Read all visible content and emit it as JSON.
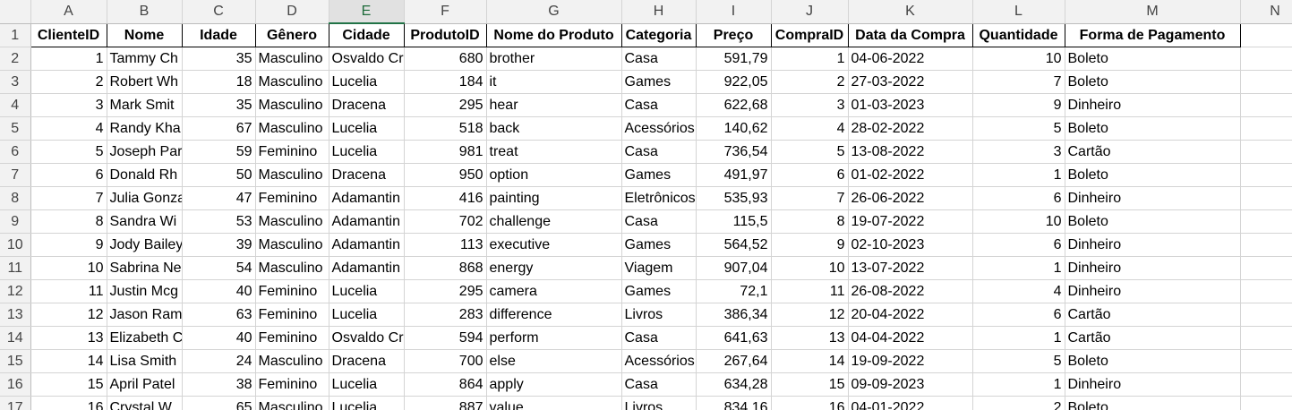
{
  "column_letters": [
    "A",
    "B",
    "C",
    "D",
    "E",
    "F",
    "G",
    "H",
    "I",
    "J",
    "K",
    "L",
    "M",
    "N"
  ],
  "selected_column": "E",
  "headers": [
    "ClienteID",
    "Nome",
    "Idade",
    "Gênero",
    "Cidade",
    "ProdutoID",
    "Nome do Produto",
    "Categoria",
    "Preço",
    "CompraID",
    "Data da Compra",
    "Quantidade",
    "Forma de Pagamento"
  ],
  "rows": [
    [
      "1",
      "Tammy Ch",
      "35",
      "Masculino",
      "Osvaldo Cr",
      "680",
      "brother",
      "Casa",
      "591,79",
      "1",
      "04-06-2022",
      "10",
      "Boleto"
    ],
    [
      "2",
      "Robert Wh",
      "18",
      "Masculino",
      "Lucelia",
      "184",
      "it",
      "Games",
      "922,05",
      "2",
      "27-03-2022",
      "7",
      "Boleto"
    ],
    [
      "3",
      "Mark Smit",
      "35",
      "Masculino",
      "Dracena",
      "295",
      "hear",
      "Casa",
      "622,68",
      "3",
      "01-03-2023",
      "9",
      "Dinheiro"
    ],
    [
      "4",
      "Randy Kha",
      "67",
      "Masculino",
      "Lucelia",
      "518",
      "back",
      "Acessórios",
      "140,62",
      "4",
      "28-02-2022",
      "5",
      "Boleto"
    ],
    [
      "5",
      "Joseph Par",
      "59",
      "Feminino",
      "Lucelia",
      "981",
      "treat",
      "Casa",
      "736,54",
      "5",
      "13-08-2022",
      "3",
      "Cartão"
    ],
    [
      "6",
      "Donald Rh",
      "50",
      "Masculino",
      "Dracena",
      "950",
      "option",
      "Games",
      "491,97",
      "6",
      "01-02-2022",
      "1",
      "Boleto"
    ],
    [
      "7",
      "Julia Gonza",
      "47",
      "Feminino",
      "Adamantin",
      "416",
      "painting",
      "Eletrônicos",
      "535,93",
      "7",
      "26-06-2022",
      "6",
      "Dinheiro"
    ],
    [
      "8",
      "Sandra Wi",
      "53",
      "Masculino",
      "Adamantin",
      "702",
      "challenge",
      "Casa",
      "115,5",
      "8",
      "19-07-2022",
      "10",
      "Boleto"
    ],
    [
      "9",
      "Jody Bailey",
      "39",
      "Masculino",
      "Adamantin",
      "113",
      "executive",
      "Games",
      "564,52",
      "9",
      "02-10-2023",
      "6",
      "Dinheiro"
    ],
    [
      "10",
      "Sabrina Ne",
      "54",
      "Masculino",
      "Adamantin",
      "868",
      "energy",
      "Viagem",
      "907,04",
      "10",
      "13-07-2022",
      "1",
      "Dinheiro"
    ],
    [
      "11",
      "Justin Mcg",
      "40",
      "Feminino",
      "Lucelia",
      "295",
      "camera",
      "Games",
      "72,1",
      "11",
      "26-08-2022",
      "4",
      "Dinheiro"
    ],
    [
      "12",
      "Jason Ram",
      "63",
      "Feminino",
      "Lucelia",
      "283",
      "difference",
      "Livros",
      "386,34",
      "12",
      "20-04-2022",
      "6",
      "Cartão"
    ],
    [
      "13",
      "Elizabeth C",
      "40",
      "Feminino",
      "Osvaldo Cr",
      "594",
      "perform",
      "Casa",
      "641,63",
      "13",
      "04-04-2022",
      "1",
      "Cartão"
    ],
    [
      "14",
      "Lisa Smith",
      "24",
      "Masculino",
      "Dracena",
      "700",
      "else",
      "Acessórios",
      "267,64",
      "14",
      "19-09-2022",
      "5",
      "Boleto"
    ],
    [
      "15",
      "April Patel",
      "38",
      "Feminino",
      "Lucelia",
      "864",
      "apply",
      "Casa",
      "634,28",
      "15",
      "09-09-2023",
      "1",
      "Dinheiro"
    ],
    [
      "16",
      "Crystal W",
      "65",
      "Masculino",
      "Lucelia",
      "887",
      "value",
      "Livros",
      "834,16",
      "16",
      "04-01-2022",
      "2",
      "Boleto"
    ]
  ]
}
